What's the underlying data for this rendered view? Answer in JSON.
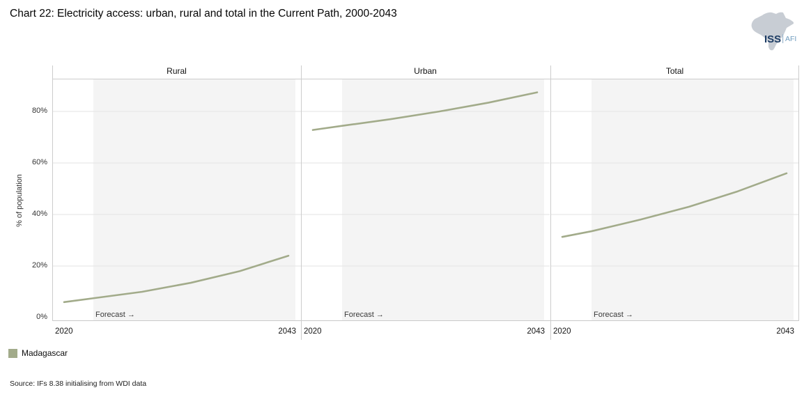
{
  "title": "Chart 22: Electricity access: urban, rural and total in the Current Path, 2000-2043",
  "logo": {
    "iss": "ISS",
    "afi": "AFI"
  },
  "y_axis": {
    "label": "% of population",
    "ticks": [
      {
        "label": "80%",
        "value": 80
      },
      {
        "label": "60%",
        "value": 60
      },
      {
        "label": "40%",
        "value": 40
      },
      {
        "label": "20%",
        "value": 20
      },
      {
        "label": "0%",
        "value": 0
      }
    ]
  },
  "x_axis": {
    "start_label": "2020",
    "end_label": "2043"
  },
  "forecast_label": "Forecast →",
  "legend": {
    "items": [
      {
        "label": "Madagascar",
        "color": "#a2ab8a"
      }
    ]
  },
  "source": "Source: IFs 8.38 initialising from WDI data",
  "chart_data": {
    "type": "line",
    "title": "Chart 22: Electricity access: urban, rural and total in the Current Path, 2000-2043",
    "facets": [
      "Rural",
      "Urban",
      "Total"
    ],
    "x": [
      2020,
      2023,
      2028,
      2033,
      2038,
      2043
    ],
    "series": [
      {
        "facet": "Rural",
        "name": "Madagascar",
        "values": [
          6,
          7.5,
          10,
          13.5,
          18,
          24
        ]
      },
      {
        "facet": "Urban",
        "name": "Madagascar",
        "values": [
          72.8,
          74.4,
          77,
          80,
          83.4,
          87.4
        ]
      },
      {
        "facet": "Total",
        "name": "Madagascar",
        "values": [
          31.3,
          33.5,
          38,
          43,
          49,
          56
        ]
      }
    ],
    "ylabel": "% of population",
    "ylim": [
      0,
      93
    ],
    "xlim": [
      2020,
      2043
    ],
    "forecast_start": 2023,
    "line_color": "#a2ab8a",
    "forecast_band_color": "#f4f4f4",
    "grid": true,
    "legend_position": "bottom-left"
  }
}
